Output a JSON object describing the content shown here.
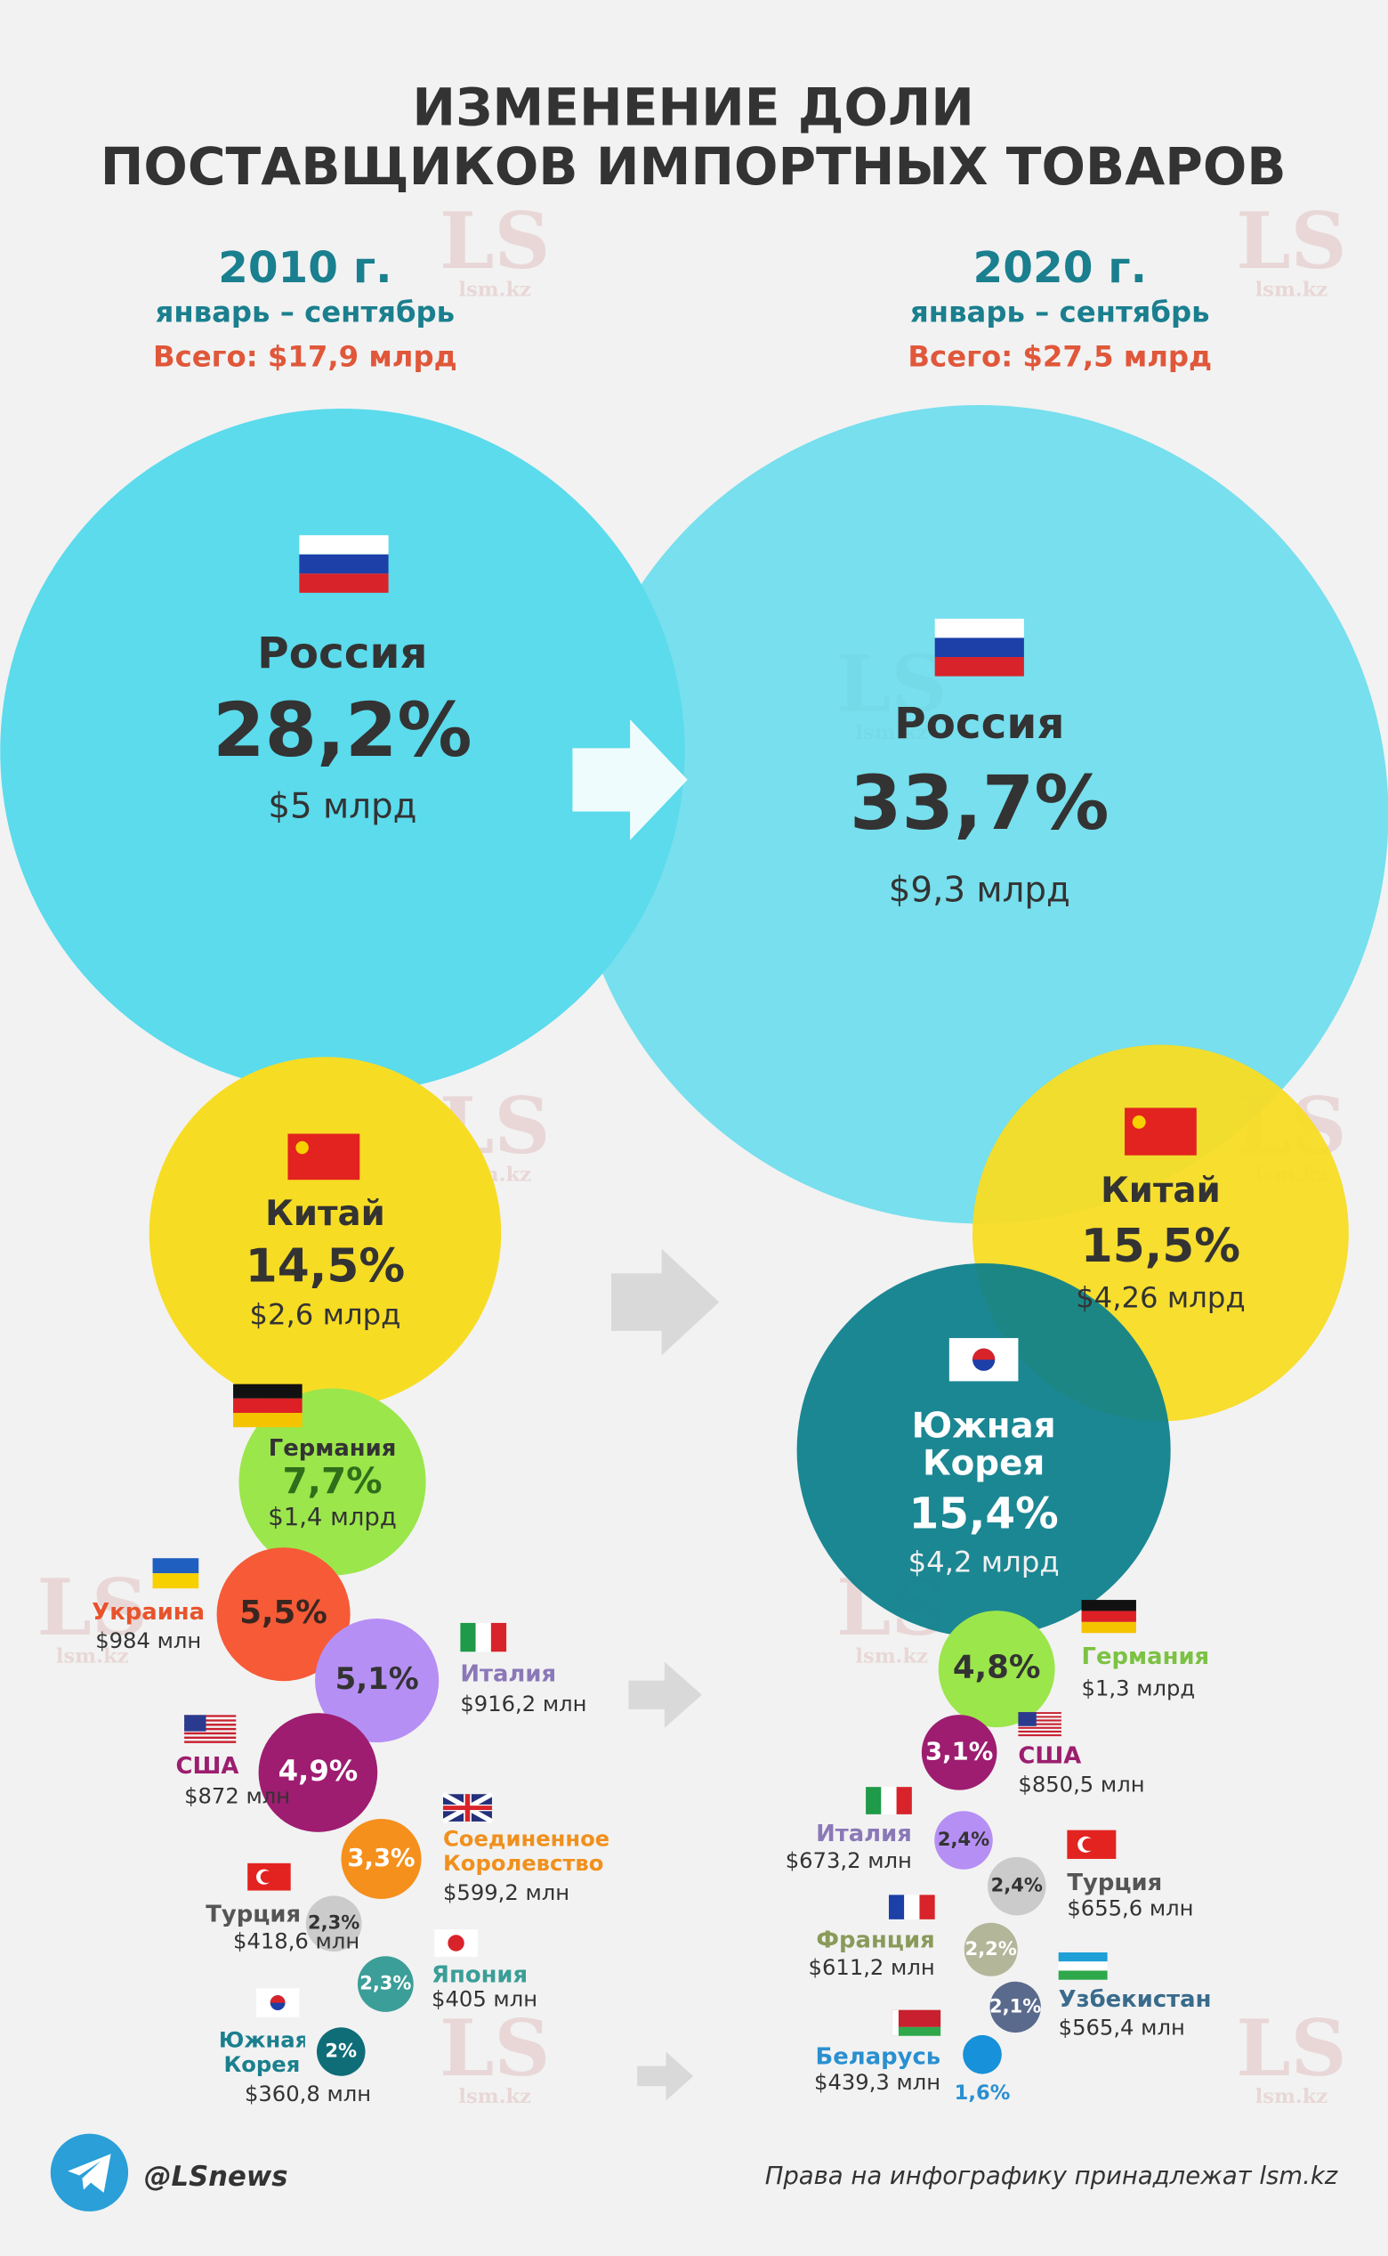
{
  "header": {
    "title": [
      "ИЗМЕНЕНИЕ ДОЛИ",
      "ПОСТАВЩИКОВ ИМПОРТНЫХ ТОВАРОВ"
    ]
  },
  "periods": [
    {
      "year": "2010 г.",
      "months": "январь – сентябрь",
      "total": "Всего: $17,9 млрд",
      "suppliers": [
        {
          "name": "Россия",
          "share": {
            "value": 28.2,
            "label": "28,2%"
          },
          "amount": "$5 млрд",
          "color": "#5bdbec"
        },
        {
          "name": "Китай",
          "share": {
            "value": 14.5,
            "label": "14,5%"
          },
          "amount": "$2,6 млрд",
          "color": "#f7dc24"
        },
        {
          "name": "Германия",
          "share": {
            "value": 7.7,
            "label": "7,7%"
          },
          "amount": "$1,4 млрд",
          "color": "#9be64b"
        },
        {
          "name": "Украина",
          "share": {
            "value": 5.5,
            "label": "5,5%"
          },
          "amount": "$984 млн",
          "color": "#f65a37"
        },
        {
          "name": "Италия",
          "share": {
            "value": 5.1,
            "label": "5,1%"
          },
          "amount": "$916,2 млн",
          "color": "#b68ff5"
        },
        {
          "name": "США",
          "share": {
            "value": 4.9,
            "label": "4,9%"
          },
          "amount": "$872 млн",
          "color": "#9e1d70"
        },
        {
          "name": "Соединенное Королевство",
          "share": {
            "value": 3.3,
            "label": "3,3%"
          },
          "amount": "$599,2 млн",
          "color": "#f5901c"
        },
        {
          "name": "Турция",
          "share": {
            "value": 2.3,
            "label": "2,3%"
          },
          "amount": "$418,6 млн",
          "color": "#cbcbcb"
        },
        {
          "name": "Япония",
          "share": {
            "value": 2.3,
            "label": "2,3%"
          },
          "amount": "$405 млн",
          "color": "#3c9e98"
        },
        {
          "name": "Южная Корея",
          "share": {
            "value": 2,
            "label": "2%"
          },
          "amount": "$360,8 млн",
          "color": "#0f6d78"
        }
      ]
    },
    {
      "year": "2020 г.",
      "months": "январь – сентябрь",
      "total": "Всего: $27,5 млрд",
      "suppliers": [
        {
          "name": "Россия",
          "share": {
            "value": 33.7,
            "label": "33,7%"
          },
          "amount": "$9,3 млрд",
          "color": "#5bdbec"
        },
        {
          "name": "Китай",
          "share": {
            "value": 15.5,
            "label": "15,5%"
          },
          "amount": "$4,26 млрд",
          "color": "#f7dc24"
        },
        {
          "name": "Южная Корея",
          "share": {
            "value": 15.4,
            "label": "15,4%"
          },
          "amount": "$4,2 млрд",
          "color": "#0b7f8c"
        },
        {
          "name": "Германия",
          "share": {
            "value": 4.8,
            "label": "4,8%"
          },
          "amount": "$1,3 млрд",
          "color": "#9be64b"
        },
        {
          "name": "США",
          "share": {
            "value": 3.1,
            "label": "3,1%"
          },
          "amount": "$850,5 млн",
          "color": "#9e1d70"
        },
        {
          "name": "Италия",
          "share": {
            "value": 2.4,
            "label": "2,4%"
          },
          "amount": "$673,2 млн",
          "color": "#b68ff5"
        },
        {
          "name": "Турция",
          "share": {
            "value": 2.4,
            "label": "2,4%"
          },
          "amount": "$655,6 млн",
          "color": "#cbcbcb"
        },
        {
          "name": "Франция",
          "share": {
            "value": 2.2,
            "label": "2,2%"
          },
          "amount": "$611,2 млн",
          "color": "#b4b69a"
        },
        {
          "name": "Узбекистан",
          "share": {
            "value": 2.1,
            "label": "2,1%"
          },
          "amount": "$565,4 млн",
          "color": "#5a6a8c"
        },
        {
          "name": "Беларусь",
          "share": {
            "value": 1.6,
            "label": "1,6%"
          },
          "amount": "$439,3 млн",
          "color": "#1791d9"
        }
      ]
    }
  ],
  "watermark": {
    "logo": "LS",
    "site": "lsm.kz"
  },
  "footer": {
    "handle": "@LSnews",
    "rights": "Права на инфографику принадлежат lsm.kz"
  }
}
